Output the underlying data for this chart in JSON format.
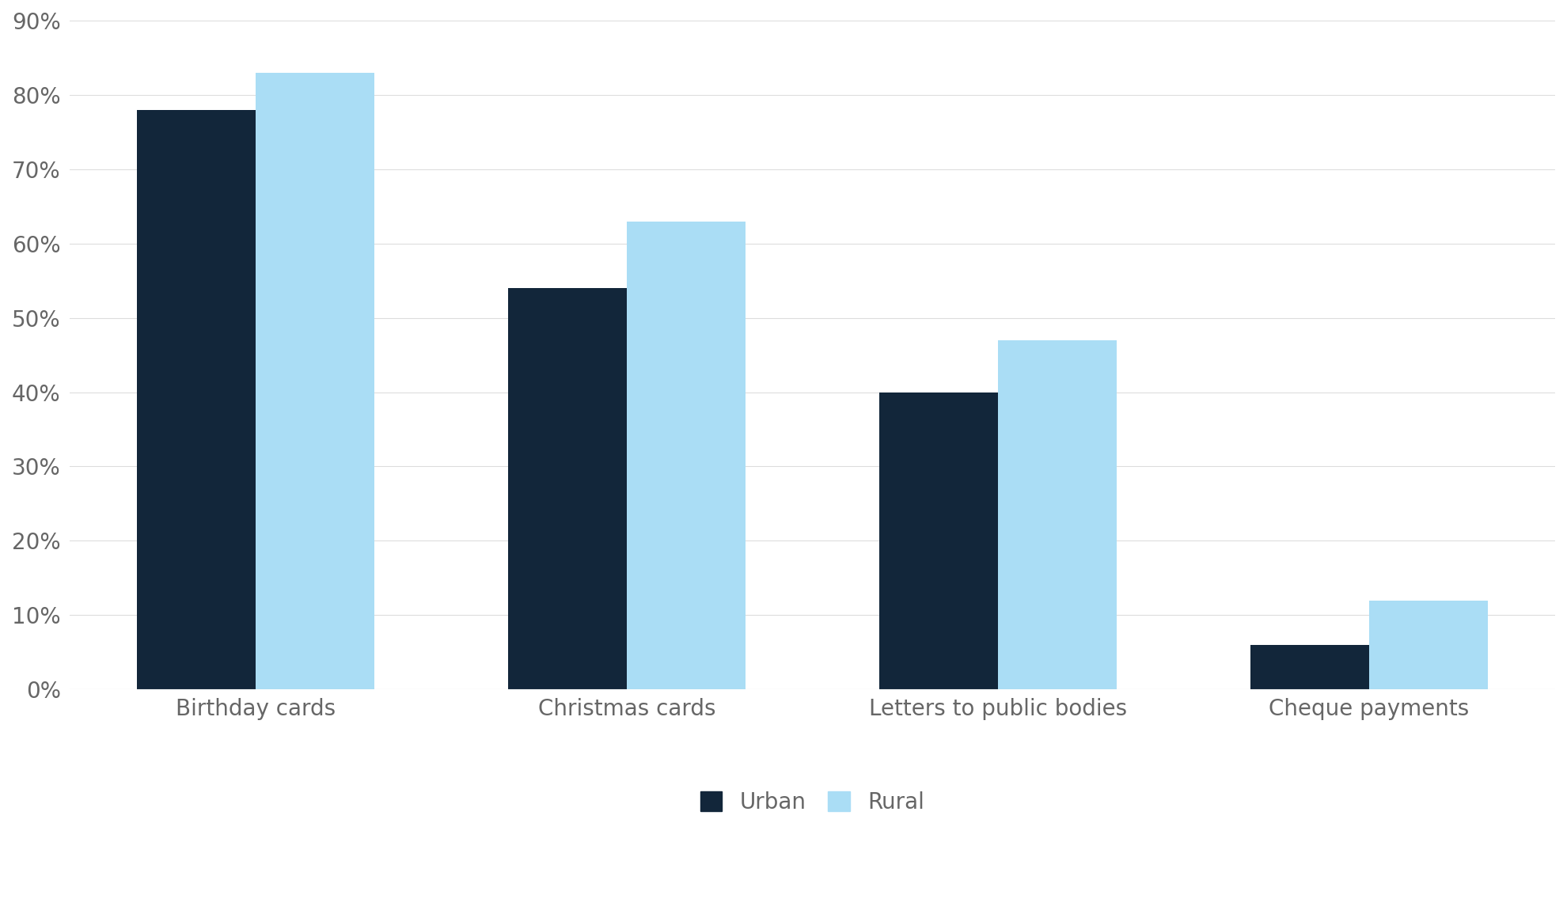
{
  "categories": [
    "Birthday cards",
    "Christmas cards",
    "Letters to public bodies",
    "Cheque payments"
  ],
  "urban_values": [
    0.78,
    0.54,
    0.4,
    0.06
  ],
  "rural_values": [
    0.83,
    0.63,
    0.47,
    0.12
  ],
  "urban_color": "#12263A",
  "rural_color": "#AADDF5",
  "ylim": [
    0,
    0.9
  ],
  "yticks": [
    0.0,
    0.1,
    0.2,
    0.3,
    0.4,
    0.5,
    0.6,
    0.7,
    0.8,
    0.9
  ],
  "ytick_labels": [
    "0%",
    "10%",
    "20%",
    "30%",
    "40%",
    "50%",
    "60%",
    "70%",
    "80%",
    "90%"
  ],
  "legend_labels": [
    "Urban",
    "Rural"
  ],
  "bar_width": 0.32,
  "background_color": "#ffffff",
  "grid_color": "#dddddd",
  "tick_color": "#666666",
  "tick_fontsize": 20,
  "legend_fontsize": 20,
  "xtick_fontsize": 20
}
